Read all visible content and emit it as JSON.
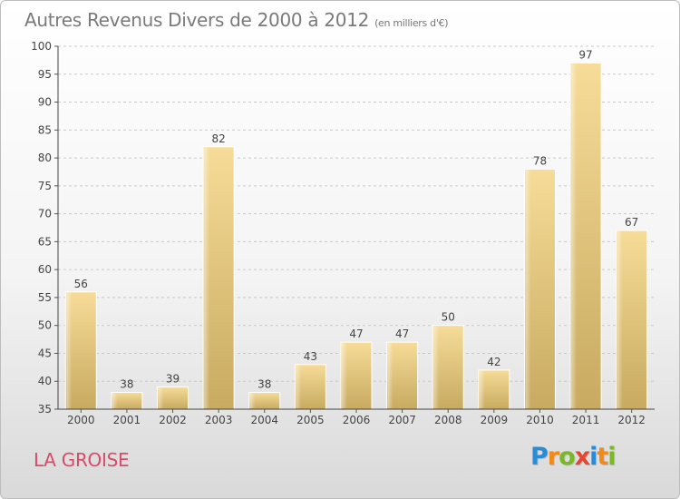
{
  "title": "Autres Revenus Divers de 2000 à 2012",
  "subtitle": "(en milliers d'€)",
  "place": "LA GROISE",
  "logo": {
    "text": "Proxiti",
    "letters": [
      {
        "ch": "P",
        "color": "#2a8bd6"
      },
      {
        "ch": "r",
        "color": "#f08a1c"
      },
      {
        "ch": "o",
        "color": "#79b927"
      },
      {
        "ch": "x",
        "color": "#e8452f"
      },
      {
        "ch": "i",
        "color": "#2a8bd6"
      },
      {
        "ch": "t",
        "color": "#f08a1c"
      },
      {
        "ch": "i",
        "color": "#79b927"
      }
    ]
  },
  "chart_data": {
    "type": "bar",
    "categories": [
      "2000",
      "2001",
      "2002",
      "2003",
      "2004",
      "2005",
      "2006",
      "2007",
      "2008",
      "2009",
      "2010",
      "2011",
      "2012"
    ],
    "values": [
      56,
      38,
      39,
      82,
      38,
      43,
      47,
      47,
      50,
      42,
      78,
      97,
      67
    ],
    "ylim": [
      35,
      100
    ],
    "yticks": [
      35,
      40,
      45,
      50,
      55,
      60,
      65,
      70,
      75,
      80,
      85,
      90,
      95,
      100
    ],
    "grid": true,
    "bar_color": "#e2c47f"
  }
}
